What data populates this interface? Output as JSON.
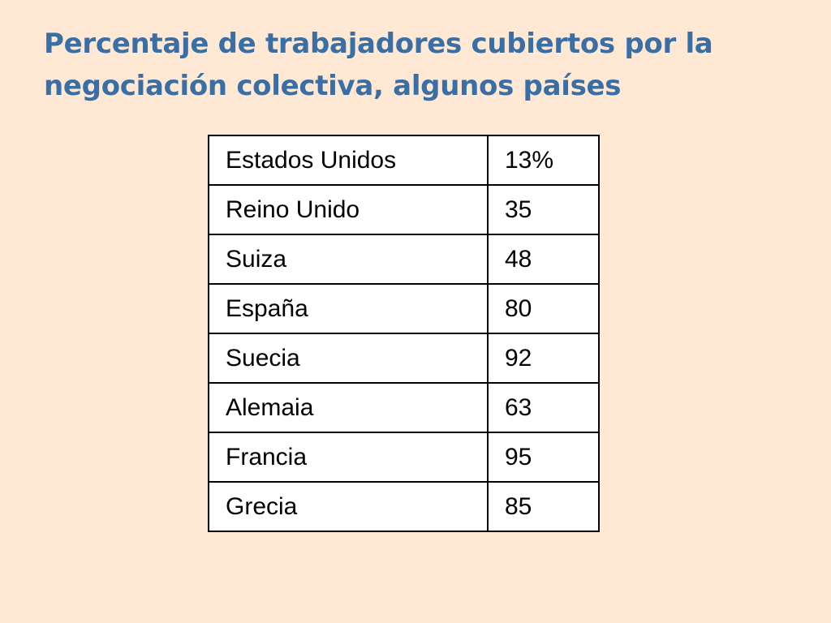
{
  "title": {
    "line1": "Percentaje de trabajadores cubiertos por la",
    "line2": "negociación colectiva, algunos países"
  },
  "table": {
    "rows": [
      {
        "country": "Estados Unidos",
        "value": "13%"
      },
      {
        "country": "Reino Unido",
        "value": "35"
      },
      {
        "country": "Suiza",
        "value": "48"
      },
      {
        "country": "España",
        "value": "80"
      },
      {
        "country": "Suecia",
        "value": "92"
      },
      {
        "country": "Alemaia",
        "value": "63"
      },
      {
        "country": "Francia",
        "value": "95"
      },
      {
        "country": "Grecia",
        "value": "85"
      }
    ]
  }
}
